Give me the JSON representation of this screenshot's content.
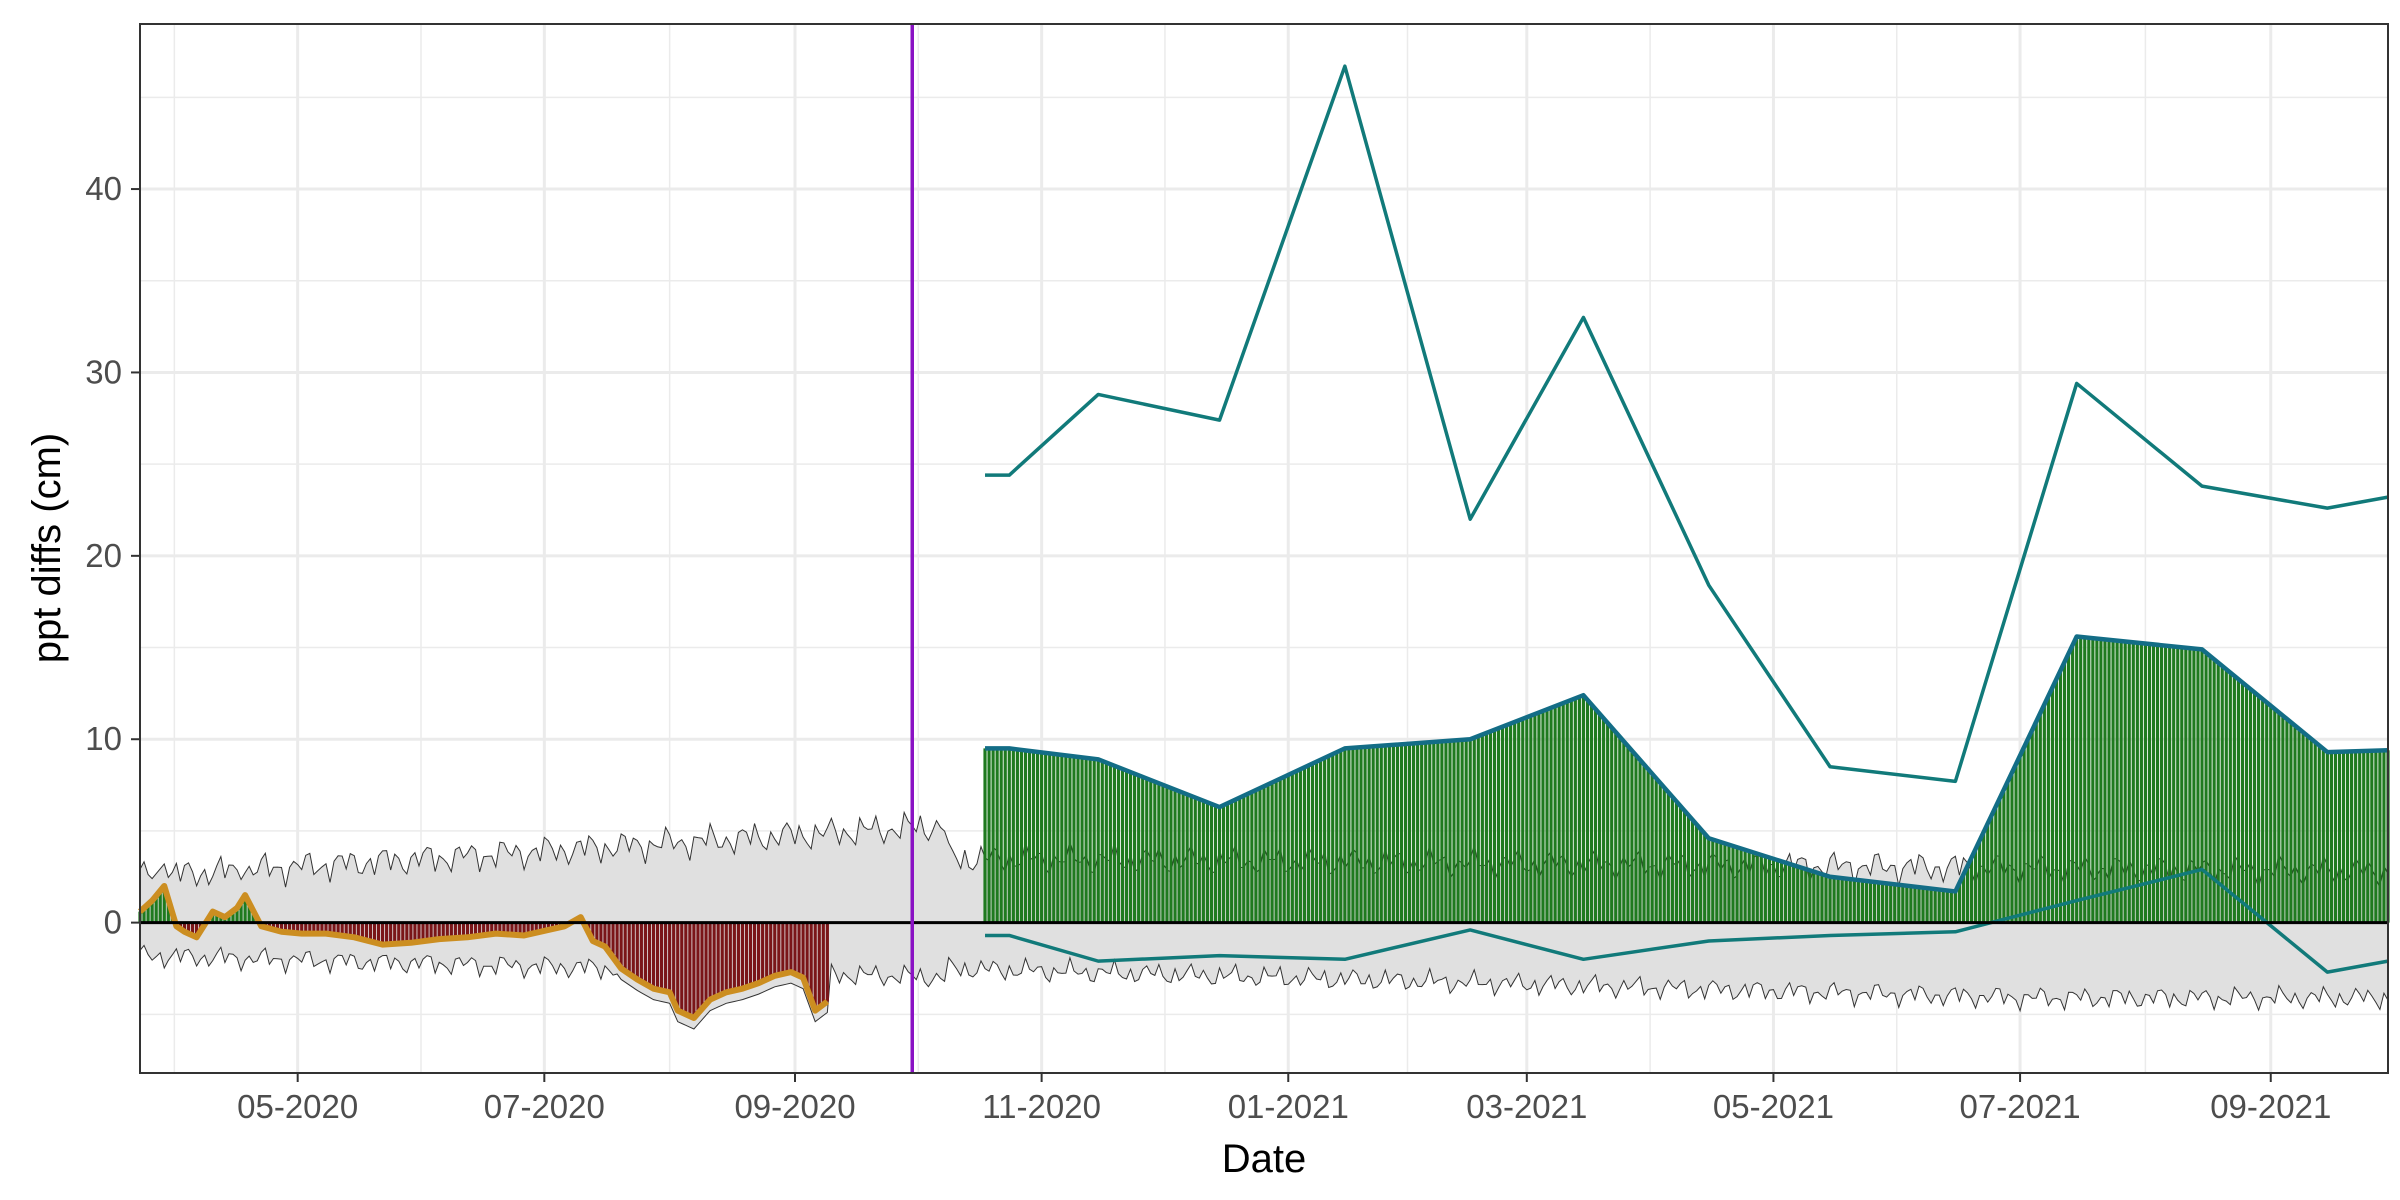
{
  "chart_data": {
    "type": "area",
    "xlabel": "Date",
    "ylabel": "ppt diffs (cm)",
    "xlim": [
      "2020-03-23",
      "2021-09-30"
    ],
    "ylim": [
      -8.2,
      49
    ],
    "grid": true,
    "x_ticks": [
      "2020-05-01",
      "2020-07-01",
      "2020-09-01",
      "2020-11-01",
      "2021-01-01",
      "2021-03-01",
      "2021-05-01",
      "2021-07-01",
      "2021-09-01"
    ],
    "x_tick_labels": [
      "05-2020",
      "07-2020",
      "09-2020",
      "11-2020",
      "01-2021",
      "03-2021",
      "05-2021",
      "07-2021",
      "09-2021"
    ],
    "y_ticks": [
      0,
      10,
      20,
      30,
      40
    ],
    "y_tick_labels": [
      "0",
      "10",
      "20",
      "30",
      "40"
    ],
    "vline_date": "2020-09-30",
    "colors": {
      "positive_fill": "#1f7a1f",
      "negative_fill": "#7a1518",
      "band_fill": "#e0e0e0",
      "observed_line": "#cc8e21",
      "envelope_line": "#117a7a",
      "mean_line": "#136d86",
      "vline": "#8a12c4",
      "zero_line": "#000000",
      "grid": "#ebebeb"
    },
    "series": [
      {
        "x": [
          "2020-03-23",
          "2020-03-26",
          "2020-03-29",
          "2020-04-01",
          "2020-04-03",
          "2020-04-06",
          "2020-04-10",
          "2020-04-13",
          "2020-04-16",
          "2020-04-18",
          "2020-04-22",
          "2020-04-27",
          "2020-05-02",
          "2020-05-08",
          "2020-05-15",
          "2020-05-22",
          "2020-05-29",
          "2020-06-05",
          "2020-06-12",
          "2020-06-19",
          "2020-06-26",
          "2020-07-02",
          "2020-07-06",
          "2020-07-10",
          "2020-07-13",
          "2020-07-16",
          "2020-07-20",
          "2020-07-24",
          "2020-07-28",
          "2020-08-01",
          "2020-08-03",
          "2020-08-07",
          "2020-08-11",
          "2020-08-15",
          "2020-08-19",
          "2020-08-23",
          "2020-08-27",
          "2020-08-31",
          "2020-09-03",
          "2020-09-06",
          "2020-09-09"
        ],
        "values": [
          0.6,
          1.2,
          2.0,
          -0.2,
          -0.5,
          -0.8,
          0.6,
          0.3,
          0.8,
          1.5,
          -0.2,
          -0.5,
          -0.6,
          -0.6,
          -0.8,
          -1.2,
          -1.1,
          -0.9,
          -0.8,
          -0.6,
          -0.7,
          -0.4,
          -0.2,
          0.3,
          -1.0,
          -1.3,
          -2.5,
          -3.1,
          -3.6,
          -3.8,
          -4.8,
          -5.2,
          -4.2,
          -3.8,
          -3.6,
          -3.3,
          -2.9,
          -2.7,
          -3.0,
          -4.8,
          -4.3
        ]
      },
      {
        "x": [
          "2020-10-18",
          "2020-10-24",
          "2020-11-15",
          "2020-12-15",
          "2021-01-15",
          "2021-02-15",
          "2021-03-15",
          "2021-04-15",
          "2021-05-15",
          "2021-06-15",
          "2021-07-15",
          "2021-08-15",
          "2021-09-15",
          "2021-09-30"
        ],
        "values": [
          24.4,
          24.4,
          28.8,
          27.4,
          46.7,
          22.0,
          33.0,
          18.4,
          8.5,
          7.7,
          29.4,
          23.8,
          22.6,
          23.2
        ]
      },
      {
        "x": [
          "2020-10-18",
          "2020-10-24",
          "2020-11-15",
          "2020-12-15",
          "2021-01-15",
          "2021-02-15",
          "2021-03-15",
          "2021-04-15",
          "2021-05-15",
          "2021-06-15",
          "2021-07-15",
          "2021-08-15",
          "2021-09-15",
          "2021-09-30"
        ],
        "values": [
          9.5,
          9.5,
          8.9,
          6.3,
          9.5,
          10.0,
          12.4,
          4.6,
          2.5,
          1.7,
          15.6,
          14.9,
          9.3,
          9.4
        ]
      },
      {
        "x": [
          "2020-10-18",
          "2020-10-24",
          "2020-11-15",
          "2020-12-15",
          "2021-01-15",
          "2021-02-15",
          "2021-03-15",
          "2021-04-15",
          "2021-05-15",
          "2021-06-15",
          "2021-07-15",
          "2021-08-15",
          "2021-09-15",
          "2021-09-30"
        ],
        "values": [
          -0.7,
          -0.7,
          -2.1,
          -1.8,
          -2.0,
          -0.4,
          -2.0,
          -1.0,
          -0.7,
          -0.5,
          1.2,
          2.9,
          -2.7,
          -2.1
        ]
      }
    ]
  }
}
